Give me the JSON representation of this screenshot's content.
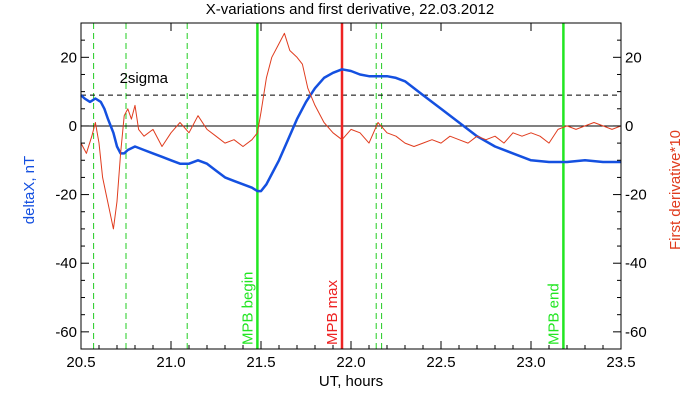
{
  "chart_data": {
    "type": "line",
    "title": "X-variations and first derivative, 22.03.2012",
    "xlabel": "UT, hours",
    "ylabel_left": "deltaX, nT",
    "ylabel_right": "First derivative*10",
    "xlim": [
      20.5,
      23.5
    ],
    "ylim": [
      -65,
      30
    ],
    "x_ticks": [
      20.5,
      21.0,
      21.5,
      22.0,
      22.5,
      23.0,
      23.5
    ],
    "x_tick_labels": [
      "20.5",
      "21.0",
      "21.5",
      "22.0",
      "22.5",
      "23.0",
      "23.5"
    ],
    "y_ticks": [
      -60,
      -40,
      -20,
      0,
      20
    ],
    "y_tick_labels": [
      "-60",
      "-40",
      "-20",
      "0",
      "20"
    ],
    "sigma_level": 9,
    "sigma_label": "2sigma",
    "colors": {
      "deltaX": "#1450e0",
      "derivative": "#e03c1e",
      "mpb_begin_end": "#22e622",
      "mpb_max": "#ee2222",
      "dashed_markers": "#22cc22",
      "axis": "#000000"
    },
    "dashed_markers_x": [
      20.57,
      20.75,
      21.09,
      22.14,
      22.17
    ],
    "events": [
      {
        "x": 21.48,
        "label": "MPB begin",
        "color": "#22e622"
      },
      {
        "x": 21.95,
        "label": "MPB max",
        "color": "#ee2222"
      },
      {
        "x": 23.18,
        "label": "MPB end",
        "color": "#22e622"
      }
    ],
    "series": [
      {
        "name": "deltaX, nT",
        "axis": "left",
        "x": [
          20.5,
          20.52,
          20.55,
          20.58,
          20.61,
          20.63,
          20.65,
          20.68,
          20.7,
          20.72,
          20.74,
          20.76,
          20.8,
          20.85,
          20.9,
          20.95,
          21.0,
          21.05,
          21.1,
          21.15,
          21.2,
          21.25,
          21.3,
          21.35,
          21.4,
          21.45,
          21.48,
          21.5,
          21.53,
          21.56,
          21.6,
          21.65,
          21.7,
          21.75,
          21.8,
          21.85,
          21.9,
          21.95,
          22.0,
          22.05,
          22.1,
          22.15,
          22.2,
          22.25,
          22.3,
          22.4,
          22.5,
          22.6,
          22.7,
          22.8,
          22.9,
          23.0,
          23.1,
          23.2,
          23.3,
          23.4,
          23.5
        ],
        "values": [
          9,
          8,
          7,
          8,
          7,
          5,
          2,
          -2,
          -6,
          -8,
          -8,
          -7,
          -6,
          -7,
          -8,
          -9,
          -10,
          -11,
          -11,
          -10,
          -11,
          -13,
          -15,
          -16,
          -17,
          -18,
          -19,
          -19,
          -17,
          -14,
          -10,
          -4,
          2,
          7,
          11,
          14,
          15.5,
          16.5,
          16,
          15,
          14.5,
          14.5,
          14.5,
          14,
          13,
          9,
          5,
          1,
          -3,
          -6,
          -8,
          -10,
          -10.5,
          -10.5,
          -10,
          -10.5,
          -10.5
        ]
      },
      {
        "name": "First derivative*10",
        "axis": "right",
        "x": [
          20.5,
          20.53,
          20.56,
          20.58,
          20.6,
          20.62,
          20.64,
          20.66,
          20.68,
          20.7,
          20.72,
          20.74,
          20.76,
          20.78,
          20.8,
          20.82,
          20.85,
          20.9,
          20.95,
          21.0,
          21.05,
          21.1,
          21.15,
          21.2,
          21.25,
          21.3,
          21.35,
          21.4,
          21.45,
          21.48,
          21.5,
          21.53,
          21.56,
          21.6,
          21.63,
          21.66,
          21.7,
          21.73,
          21.76,
          21.8,
          21.85,
          21.9,
          21.95,
          22.0,
          22.05,
          22.1,
          22.15,
          22.2,
          22.25,
          22.3,
          22.35,
          22.4,
          22.45,
          22.5,
          22.55,
          22.6,
          22.65,
          22.7,
          22.75,
          22.8,
          22.85,
          22.9,
          22.95,
          23.0,
          23.05,
          23.1,
          23.15,
          23.2,
          23.25,
          23.3,
          23.35,
          23.4,
          23.45,
          23.5
        ],
        "values": [
          -5,
          -8,
          -3,
          1,
          -5,
          -15,
          -20,
          -25,
          -30,
          -22,
          -8,
          3,
          5,
          2,
          6,
          -1,
          -3,
          -1,
          -6,
          -2,
          1,
          -2,
          3,
          -1,
          -3,
          -5,
          -4,
          -6,
          -4,
          -2,
          4,
          14,
          20,
          24,
          27,
          22,
          20,
          18,
          11,
          6,
          1,
          -2,
          -4,
          -1,
          -2,
          -5,
          1,
          -2,
          -3,
          -5,
          -6,
          -5,
          -4,
          -5,
          -3,
          -4,
          -5,
          -3,
          -4,
          -3,
          -5,
          -2,
          -3,
          -2,
          -3,
          -5,
          -1,
          0,
          -1,
          0,
          1,
          0,
          -1,
          0
        ]
      }
    ]
  }
}
